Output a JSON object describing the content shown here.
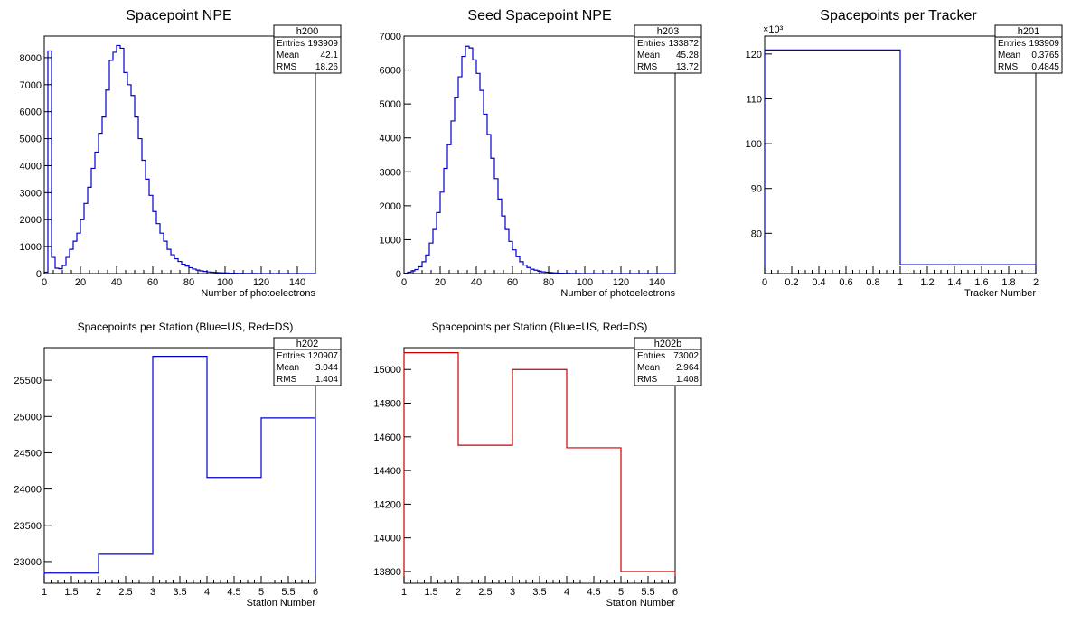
{
  "chart_data": [
    {
      "id": "h200",
      "type": "histogram",
      "title": "Spacepoint NPE",
      "xlabel": "Number of photoelectrons",
      "ylabel": "",
      "xlim": [
        0,
        150
      ],
      "ylim": [
        0,
        8800
      ],
      "xticks": [
        0,
        20,
        40,
        60,
        80,
        100,
        120,
        140
      ],
      "yticks": [
        0,
        1000,
        2000,
        3000,
        4000,
        5000,
        6000,
        7000,
        8000
      ],
      "xtick_labels": [
        "0",
        "20",
        "40",
        "60",
        "80",
        "100",
        "120",
        "140"
      ],
      "ytick_labels": [
        "0",
        "1000",
        "2000",
        "3000",
        "4000",
        "5000",
        "6000",
        "7000",
        "8000"
      ],
      "color": "#0000cc",
      "bin_width": 2,
      "values": [
        50,
        8250,
        600,
        200,
        180,
        300,
        600,
        900,
        1200,
        1500,
        2000,
        2600,
        3200,
        3900,
        4500,
        5200,
        5800,
        6800,
        7900,
        8200,
        8450,
        8350,
        7450,
        7000,
        6600,
        5800,
        5000,
        4200,
        3500,
        2900,
        2300,
        1850,
        1500,
        1200,
        900,
        700,
        550,
        450,
        350,
        280,
        220,
        170,
        130,
        100,
        80,
        60,
        50,
        40,
        30,
        25,
        20,
        15,
        12,
        10,
        8,
        6,
        5,
        4,
        3,
        2,
        1,
        1,
        1,
        1,
        1,
        0,
        0,
        0,
        0,
        0,
        0,
        0,
        0,
        0,
        0
      ],
      "stats": {
        "name": "h200",
        "rows": [
          [
            "Entries",
            "193909"
          ],
          [
            "Mean",
            "42.1"
          ],
          [
            "RMS",
            "18.26"
          ]
        ]
      }
    },
    {
      "id": "h203",
      "type": "histogram",
      "title": "Seed Spacepoint NPE",
      "xlabel": "Number of photoelectrons",
      "ylabel": "",
      "xlim": [
        0,
        150
      ],
      "ylim": [
        0,
        7000
      ],
      "xticks": [
        0,
        20,
        40,
        60,
        80,
        100,
        120,
        140
      ],
      "yticks": [
        0,
        1000,
        2000,
        3000,
        4000,
        5000,
        6000,
        7000
      ],
      "xtick_labels": [
        "0",
        "20",
        "40",
        "60",
        "80",
        "100",
        "120",
        "140"
      ],
      "ytick_labels": [
        "0",
        "1000",
        "2000",
        "3000",
        "4000",
        "5000",
        "6000",
        "7000"
      ],
      "color": "#0000cc",
      "bin_width": 2,
      "values": [
        10,
        40,
        80,
        120,
        200,
        350,
        550,
        900,
        1300,
        1800,
        2400,
        3100,
        3800,
        4500,
        5200,
        5800,
        6400,
        6700,
        6650,
        6300,
        5900,
        5400,
        4700,
        4100,
        3400,
        2800,
        2200,
        1700,
        1300,
        950,
        700,
        500,
        350,
        250,
        180,
        130,
        100,
        70,
        50,
        40,
        30,
        20,
        15,
        10,
        8,
        6,
        5,
        4,
        3,
        2,
        2,
        1,
        1,
        1,
        1,
        0,
        0,
        0,
        0,
        0,
        0,
        0,
        0,
        0,
        0,
        0,
        0,
        0,
        0,
        0,
        0,
        0,
        0,
        0,
        0
      ],
      "stats": {
        "name": "h203",
        "rows": [
          [
            "Entries",
            "133872"
          ],
          [
            "Mean",
            "45.28"
          ],
          [
            "RMS",
            "13.72"
          ]
        ]
      }
    },
    {
      "id": "h201",
      "type": "histogram",
      "title": "Spacepoints per Tracker",
      "xlabel": "Tracker Number",
      "ylabel": "",
      "xlim": [
        0,
        2
      ],
      "ylim": [
        71000,
        124000
      ],
      "xticks": [
        0,
        0.2,
        0.4,
        0.6,
        0.8,
        1,
        1.2,
        1.4,
        1.6,
        1.8,
        2
      ],
      "yticks": [
        80000,
        90000,
        100000,
        110000,
        120000
      ],
      "xtick_labels": [
        "0",
        "0.2",
        "0.4",
        "0.6",
        "0.8",
        "1",
        "1.2",
        "1.4",
        "1.6",
        "1.8",
        "2"
      ],
      "ytick_labels": [
        "80",
        "90",
        "100",
        "110",
        "120"
      ],
      "exponent_label": "×10³",
      "color": "#0000cc",
      "bin_edges": [
        0,
        1,
        2
      ],
      "values": [
        120907,
        73002
      ],
      "stats": {
        "name": "h201",
        "rows": [
          [
            "Entries",
            "193909"
          ],
          [
            "Mean",
            "0.3765"
          ],
          [
            "RMS",
            "0.4845"
          ]
        ]
      }
    },
    {
      "id": "h202",
      "type": "histogram",
      "title": "Spacepoints per Station (Blue=US, Red=DS)",
      "xlabel": "Station Number",
      "ylabel": "",
      "xlim": [
        1,
        6
      ],
      "ylim": [
        22700,
        25950
      ],
      "xticks": [
        1,
        1.5,
        2,
        2.5,
        3,
        3.5,
        4,
        4.5,
        5,
        5.5,
        6
      ],
      "yticks": [
        23000,
        23500,
        24000,
        24500,
        25000,
        25500
      ],
      "xtick_labels": [
        "1",
        "1.5",
        "2",
        "2.5",
        "3",
        "3.5",
        "4",
        "4.5",
        "5",
        "5.5",
        "6"
      ],
      "ytick_labels": [
        "23000",
        "23500",
        "24000",
        "24500",
        "25000",
        "25500"
      ],
      "color": "#0000cc",
      "bin_edges": [
        1,
        2,
        3,
        4,
        5,
        6
      ],
      "values": [
        22840,
        23100,
        25830,
        24160,
        24980
      ],
      "stats": {
        "name": "h202",
        "rows": [
          [
            "Entries",
            "120907"
          ],
          [
            "Mean",
            "3.044"
          ],
          [
            "RMS",
            "1.404"
          ]
        ]
      }
    },
    {
      "id": "h202b",
      "type": "histogram",
      "title": "Spacepoints per Station (Blue=US, Red=DS)",
      "xlabel": "Station Number",
      "ylabel": "",
      "xlim": [
        1,
        6
      ],
      "ylim": [
        13730,
        15130
      ],
      "xticks": [
        1,
        1.5,
        2,
        2.5,
        3,
        3.5,
        4,
        4.5,
        5,
        5.5,
        6
      ],
      "yticks": [
        13800,
        14000,
        14200,
        14400,
        14600,
        14800,
        15000
      ],
      "xtick_labels": [
        "1",
        "1.5",
        "2",
        "2.5",
        "3",
        "3.5",
        "4",
        "4.5",
        "5",
        "5.5",
        "6"
      ],
      "ytick_labels": [
        "13800",
        "14000",
        "14200",
        "14400",
        "14600",
        "14800",
        "15000"
      ],
      "color": "#cc0000",
      "bin_edges": [
        1,
        2,
        3,
        4,
        5,
        6
      ],
      "values": [
        15100,
        14550,
        15000,
        14535,
        13800
      ],
      "stats": {
        "name": "h202b",
        "rows": [
          [
            "Entries",
            "73002"
          ],
          [
            "Mean",
            "2.964"
          ],
          [
            "RMS",
            "1.408"
          ]
        ]
      }
    }
  ]
}
